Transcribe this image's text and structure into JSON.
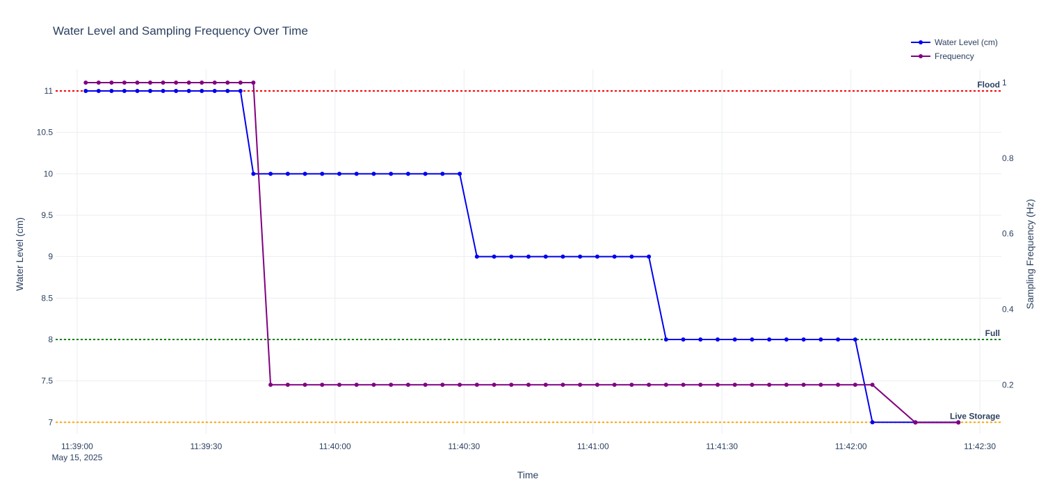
{
  "chart_data": {
    "type": "line",
    "title": "Water Level and Sampling Frequency Over Time",
    "xlabel": "Time",
    "ylabel": "Water Level (cm)",
    "y2label": "Sampling Frequency (Hz)",
    "x_date_label": "May 15, 2025",
    "x_tick_labels": [
      "11:39:00",
      "11:39:30",
      "11:40:00",
      "11:40:30",
      "11:41:00",
      "11:41:30",
      "11:42:00",
      "11:42:30"
    ],
    "x_ticks_seconds_after_11_39_00": [
      0,
      30,
      60,
      90,
      120,
      150,
      180,
      210
    ],
    "xlim": [
      "11:38:55",
      "11:42:35"
    ],
    "ylim": [
      6.86,
      11.26
    ],
    "y2lim": [
      0.07,
      1.035
    ],
    "y_ticks": [
      "7",
      "7.5",
      "8",
      "8.5",
      "9",
      "9.5",
      "10",
      "10.5",
      "11"
    ],
    "y2_ticks": [
      "0.2",
      "0.4",
      "0.6",
      "0.8",
      "1"
    ],
    "grid": true,
    "legend_position": "top-right",
    "series": [
      {
        "name": "Water Level (cm)",
        "axis": "left",
        "color": "#0000ee",
        "points": [
          [
            "11:39:02",
            11
          ],
          [
            "11:39:05",
            11
          ],
          [
            "11:39:08",
            11
          ],
          [
            "11:39:11",
            11
          ],
          [
            "11:39:14",
            11
          ],
          [
            "11:39:17",
            11
          ],
          [
            "11:39:20",
            11
          ],
          [
            "11:39:23",
            11
          ],
          [
            "11:39:26",
            11
          ],
          [
            "11:39:29",
            11
          ],
          [
            "11:39:32",
            11
          ],
          [
            "11:39:35",
            11
          ],
          [
            "11:39:38",
            11
          ],
          [
            "11:39:41",
            10
          ],
          [
            "11:39:45",
            10
          ],
          [
            "11:39:49",
            10
          ],
          [
            "11:39:53",
            10
          ],
          [
            "11:39:57",
            10
          ],
          [
            "11:40:01",
            10
          ],
          [
            "11:40:05",
            10
          ],
          [
            "11:40:09",
            10
          ],
          [
            "11:40:13",
            10
          ],
          [
            "11:40:17",
            10
          ],
          [
            "11:40:21",
            10
          ],
          [
            "11:40:25",
            10
          ],
          [
            "11:40:29",
            10
          ],
          [
            "11:40:33",
            9
          ],
          [
            "11:40:37",
            9
          ],
          [
            "11:40:41",
            9
          ],
          [
            "11:40:45",
            9
          ],
          [
            "11:40:49",
            9
          ],
          [
            "11:40:53",
            9
          ],
          [
            "11:40:57",
            9
          ],
          [
            "11:41:01",
            9
          ],
          [
            "11:41:05",
            9
          ],
          [
            "11:41:09",
            9
          ],
          [
            "11:41:13",
            9
          ],
          [
            "11:41:17",
            8
          ],
          [
            "11:41:21",
            8
          ],
          [
            "11:41:25",
            8
          ],
          [
            "11:41:29",
            8
          ],
          [
            "11:41:33",
            8
          ],
          [
            "11:41:37",
            8
          ],
          [
            "11:41:41",
            8
          ],
          [
            "11:41:45",
            8
          ],
          [
            "11:41:49",
            8
          ],
          [
            "11:41:53",
            8
          ],
          [
            "11:41:57",
            8
          ],
          [
            "11:42:01",
            8
          ],
          [
            "11:42:05",
            7
          ],
          [
            "11:42:15",
            7
          ],
          [
            "11:42:25",
            7
          ]
        ]
      },
      {
        "name": "Frequency",
        "axis": "right",
        "color": "#800080",
        "points": [
          [
            "11:39:02",
            1
          ],
          [
            "11:39:05",
            1
          ],
          [
            "11:39:08",
            1
          ],
          [
            "11:39:11",
            1
          ],
          [
            "11:39:14",
            1
          ],
          [
            "11:39:17",
            1
          ],
          [
            "11:39:20",
            1
          ],
          [
            "11:39:23",
            1
          ],
          [
            "11:39:26",
            1
          ],
          [
            "11:39:29",
            1
          ],
          [
            "11:39:32",
            1
          ],
          [
            "11:39:35",
            1
          ],
          [
            "11:39:38",
            1
          ],
          [
            "11:39:41",
            1
          ],
          [
            "11:39:45",
            0.2
          ],
          [
            "11:39:49",
            0.2
          ],
          [
            "11:39:53",
            0.2
          ],
          [
            "11:39:57",
            0.2
          ],
          [
            "11:40:01",
            0.2
          ],
          [
            "11:40:05",
            0.2
          ],
          [
            "11:40:09",
            0.2
          ],
          [
            "11:40:13",
            0.2
          ],
          [
            "11:40:17",
            0.2
          ],
          [
            "11:40:21",
            0.2
          ],
          [
            "11:40:25",
            0.2
          ],
          [
            "11:40:29",
            0.2
          ],
          [
            "11:40:33",
            0.2
          ],
          [
            "11:40:37",
            0.2
          ],
          [
            "11:40:41",
            0.2
          ],
          [
            "11:40:45",
            0.2
          ],
          [
            "11:40:49",
            0.2
          ],
          [
            "11:40:53",
            0.2
          ],
          [
            "11:40:57",
            0.2
          ],
          [
            "11:41:01",
            0.2
          ],
          [
            "11:41:05",
            0.2
          ],
          [
            "11:41:09",
            0.2
          ],
          [
            "11:41:13",
            0.2
          ],
          [
            "11:41:17",
            0.2
          ],
          [
            "11:41:21",
            0.2
          ],
          [
            "11:41:25",
            0.2
          ],
          [
            "11:41:29",
            0.2
          ],
          [
            "11:41:33",
            0.2
          ],
          [
            "11:41:37",
            0.2
          ],
          [
            "11:41:41",
            0.2
          ],
          [
            "11:41:45",
            0.2
          ],
          [
            "11:41:49",
            0.2
          ],
          [
            "11:41:53",
            0.2
          ],
          [
            "11:41:57",
            0.2
          ],
          [
            "11:42:01",
            0.2
          ],
          [
            "11:42:05",
            0.2
          ],
          [
            "11:42:15",
            0.1
          ],
          [
            "11:42:25",
            0.1
          ]
        ]
      }
    ],
    "reference_lines": [
      {
        "label": "Flood",
        "y": 11,
        "color": "#ff0000",
        "style": "dotted"
      },
      {
        "label": "Full",
        "y": 8,
        "color": "#008000",
        "style": "dotted"
      },
      {
        "label": "Live Storage",
        "y": 7,
        "color": "#ffa500",
        "style": "dotted"
      }
    ]
  }
}
